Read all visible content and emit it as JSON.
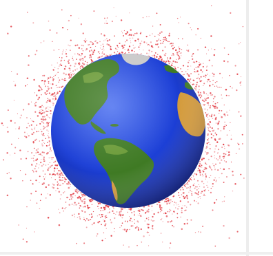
{
  "image": {
    "subject": "earth-with-orbital-debris",
    "colors": {
      "background": "#ffffff",
      "debris": "#e0313a",
      "ocean_light": "#4a6ff0",
      "ocean": "#1c3fd6",
      "ocean_dark": "#0a1a7a",
      "land": "#3f7a24",
      "land_light": "#6a9a36",
      "desert": "#d49b3c",
      "ice": "#c9c9c9"
    }
  }
}
